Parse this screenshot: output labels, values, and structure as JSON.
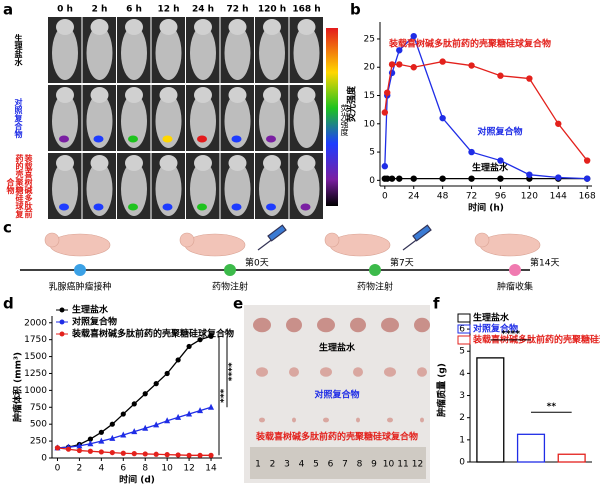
{
  "panel_labels": [
    "a",
    "b",
    "c",
    "d",
    "e",
    "f"
  ],
  "panel_a": {
    "times": [
      "0 h",
      "2 h",
      "6 h",
      "12 h",
      "24 h",
      "72 h",
      "120 h",
      "168 h"
    ],
    "rows": [
      "生理盐水",
      "对照复合物",
      "装载喜树碱多肽前药的壳聚糖硅球复合物"
    ],
    "colorbar_label": "荧光强度"
  },
  "timeline": {
    "events": [
      "乳腺癌肿瘤接种",
      "药物注射",
      "药物注射",
      "肿瘤收集"
    ],
    "days": [
      "第0天",
      "第7天",
      "第14天"
    ]
  },
  "panel_e": {
    "labels": [
      "生理盐水",
      "对照复合物",
      "装载喜树碱多肽前药的壳聚糖硅球复合物"
    ],
    "ruler": [
      "1",
      "2",
      "3",
      "4",
      "5",
      "6",
      "7",
      "8",
      "9",
      "10",
      "11",
      "12"
    ]
  },
  "chart_data": [
    {
      "type": "line",
      "x_label": "时间 (h)",
      "y_label": "荧光强度",
      "x": [
        0,
        2,
        6,
        12,
        24,
        48,
        72,
        96,
        120,
        144,
        168
      ],
      "xlim": [
        -4,
        172
      ],
      "xticks": [
        0,
        24,
        48,
        72,
        96,
        120,
        144,
        168
      ],
      "ylim": [
        -1,
        28
      ],
      "yticks": [
        0,
        5,
        10,
        15,
        20,
        25
      ],
      "series": [
        {
          "name": "生理盐水",
          "color": "#000000",
          "values": [
            0.3,
            0.3,
            0.3,
            0.3,
            0.3,
            0.3,
            0.3,
            0.3,
            0.3,
            0.3,
            0.3
          ]
        },
        {
          "name": "对照复合物",
          "color": "#1f2de6",
          "values": [
            2.5,
            15,
            19,
            23,
            25.5,
            11,
            5,
            3.5,
            1,
            0.5,
            0.3
          ]
        },
        {
          "name": "装载喜树碱多肽前药的壳聚糖硅球复合物",
          "color": "#e3211c",
          "values": [
            12,
            15.5,
            20.5,
            20.5,
            20,
            21,
            20.3,
            18.5,
            18,
            10,
            3.5
          ]
        }
      ]
    },
    {
      "type": "line",
      "x_label": "时间 (d)",
      "y_label": "肿瘤体积 (mm³)",
      "x": [
        0,
        1,
        2,
        3,
        4,
        5,
        6,
        7,
        8,
        9,
        10,
        11,
        12,
        13,
        14
      ],
      "xlim": [
        -0.5,
        15
      ],
      "xticks": [
        0,
        2,
        4,
        6,
        8,
        10,
        12,
        14
      ],
      "ylim": [
        0,
        2100
      ],
      "yticks": [
        0,
        250,
        500,
        750,
        1000,
        1250,
        1500,
        1750,
        2000
      ],
      "legend": "upper left",
      "annotations": [
        "****",
        "***"
      ],
      "series": [
        {
          "name": "生理盐水",
          "color": "#000000",
          "values": [
            150,
            160,
            200,
            280,
            380,
            500,
            650,
            800,
            950,
            1100,
            1250,
            1450,
            1650,
            1750,
            1800
          ]
        },
        {
          "name": "对照复合物",
          "color": "#1f2de6",
          "values": [
            150,
            160,
            180,
            210,
            250,
            290,
            340,
            390,
            440,
            490,
            550,
            600,
            650,
            700,
            750
          ]
        },
        {
          "name": "装载喜树碱多肽前药的壳聚糖硅球复合物",
          "color": "#e3211c",
          "values": [
            150,
            130,
            110,
            100,
            90,
            80,
            70,
            65,
            60,
            55,
            50,
            45,
            40,
            40,
            40
          ]
        }
      ]
    },
    {
      "type": "bar",
      "y_label": "肿瘤质量 (g)",
      "categories": [
        null,
        null,
        null
      ],
      "values": [
        4.7,
        1.25,
        0.35
      ],
      "colors": [
        "#000000",
        "#1f2de6",
        "#e3211c"
      ],
      "legend": [
        "生理盐水",
        "对照复合物",
        "装载喜树碱多肽前药的壳聚糖硅球复合物"
      ],
      "ylim": [
        0,
        6.5
      ],
      "yticks": [
        0,
        1,
        2,
        3,
        4,
        5,
        6
      ],
      "annotations": [
        "****",
        "**"
      ]
    }
  ]
}
